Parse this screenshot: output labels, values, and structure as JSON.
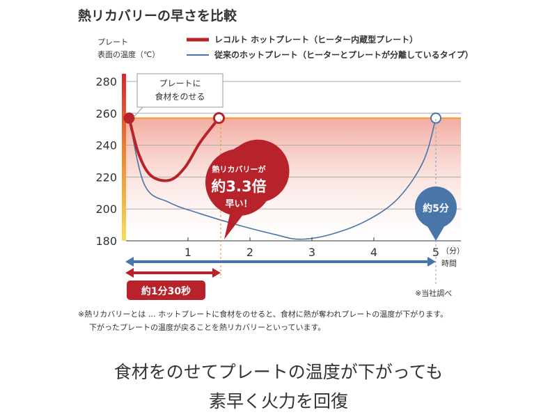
{
  "title": "熱リカバリーの早さを比較",
  "y_label_1": "プレート",
  "y_label_2": "表面の温度（℃）",
  "callout_1": "プレートに",
  "callout_2": "食材をのせる",
  "bubble_red_1": "熱リカバリーが",
  "bubble_red_2": "約3.3倍",
  "bubble_red_3": "早い！",
  "bubble_blue": "約5分",
  "x_unit": "（分）",
  "x_label": "時間",
  "badge_red": "約1分30秒",
  "source": "※当社調べ",
  "note_1": "※熱リカバリーとは … ホットプレートに食材をのせると、食材に熱が奪われプレートの温度が下がります。",
  "note_2": "下がったプレートの温度が戻ることを熱リカバリーといっています。",
  "headline_1": "食材をのせてプレートの温度が下がっても",
  "headline_2": "素早く火力を回復",
  "colors": {
    "red": "#b8222a",
    "blue": "#4a75a8",
    "orange": "#f29a2e"
  },
  "chart_data": {
    "type": "line",
    "title": "熱リカバリーの早さを比較",
    "xlabel": "時間（分）",
    "ylabel": "プレート 表面の温度（℃）",
    "xlim": [
      0,
      5.4
    ],
    "ylim": [
      180,
      280
    ],
    "x_ticks": [
      "1",
      "2",
      "3",
      "4",
      "5"
    ],
    "y_ticks": [
      "180",
      "200",
      "220",
      "240",
      "260",
      "280"
    ],
    "series": [
      {
        "name": "レコルト ホットプレート（ヒーター内蔵型プレート）",
        "color": "#b8222a",
        "x": [
          0.05,
          0.2,
          0.4,
          0.7,
          0.95,
          1.2,
          1.5
        ],
        "y": [
          257,
          235,
          221,
          218,
          226,
          242,
          257
        ]
      },
      {
        "name": "従来のホットプレート（ヒーターとプレートが分離しているタイプ）",
        "color": "#4a75a8",
        "x": [
          0.05,
          0.3,
          0.7,
          1.2,
          1.8,
          2.4,
          2.8,
          3.3,
          3.9,
          4.4,
          4.8,
          5.0
        ],
        "y": [
          257,
          215,
          204,
          197,
          190,
          184,
          181,
          184,
          193,
          207,
          230,
          257
        ]
      }
    ],
    "legend": "top"
  }
}
